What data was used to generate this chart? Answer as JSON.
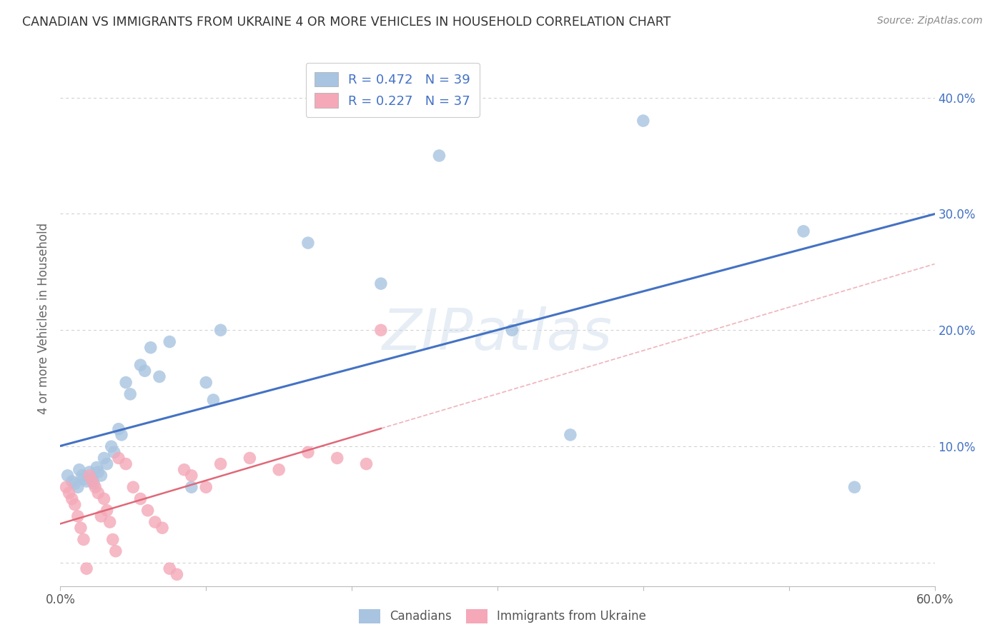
{
  "title": "CANADIAN VS IMMIGRANTS FROM UKRAINE 4 OR MORE VEHICLES IN HOUSEHOLD CORRELATION CHART",
  "source": "Source: ZipAtlas.com",
  "ylabel": "4 or more Vehicles in Household",
  "watermark": "ZIPatlas",
  "canadians_R": 0.472,
  "canadians_N": 39,
  "ukraine_R": 0.227,
  "ukraine_N": 37,
  "xlim": [
    0.0,
    0.6
  ],
  "ylim": [
    -0.02,
    0.44
  ],
  "x_ticks": [
    0.0,
    0.1,
    0.2,
    0.3,
    0.4,
    0.5,
    0.6
  ],
  "y_ticks_right": [
    0.0,
    0.1,
    0.2,
    0.3,
    0.4
  ],
  "canadians_color": "#a8c4e0",
  "ukraine_color": "#f4a8b8",
  "canadians_line_color": "#4472c4",
  "ukraine_line_color": "#e06878",
  "canadians_x": [
    0.005,
    0.008,
    0.01,
    0.012,
    0.013,
    0.015,
    0.016,
    0.018,
    0.02,
    0.022,
    0.023,
    0.025,
    0.026,
    0.028,
    0.03,
    0.032,
    0.035,
    0.037,
    0.04,
    0.042,
    0.045,
    0.048,
    0.055,
    0.058,
    0.062,
    0.068,
    0.075,
    0.09,
    0.1,
    0.105,
    0.11,
    0.17,
    0.22,
    0.26,
    0.31,
    0.35,
    0.4,
    0.51,
    0.545
  ],
  "canadians_y": [
    0.075,
    0.07,
    0.068,
    0.065,
    0.08,
    0.075,
    0.072,
    0.07,
    0.078,
    0.073,
    0.068,
    0.082,
    0.078,
    0.075,
    0.09,
    0.085,
    0.1,
    0.095,
    0.115,
    0.11,
    0.155,
    0.145,
    0.17,
    0.165,
    0.185,
    0.16,
    0.19,
    0.065,
    0.155,
    0.14,
    0.2,
    0.275,
    0.24,
    0.35,
    0.2,
    0.11,
    0.38,
    0.285,
    0.065
  ],
  "ukraine_x": [
    0.004,
    0.006,
    0.008,
    0.01,
    0.012,
    0.014,
    0.016,
    0.018,
    0.02,
    0.022,
    0.024,
    0.026,
    0.028,
    0.03,
    0.032,
    0.034,
    0.036,
    0.038,
    0.04,
    0.045,
    0.05,
    0.055,
    0.06,
    0.065,
    0.07,
    0.075,
    0.08,
    0.085,
    0.09,
    0.1,
    0.11,
    0.13,
    0.15,
    0.17,
    0.19,
    0.21,
    0.22
  ],
  "ukraine_y": [
    0.065,
    0.06,
    0.055,
    0.05,
    0.04,
    0.03,
    0.02,
    -0.005,
    0.075,
    0.07,
    0.065,
    0.06,
    0.04,
    0.055,
    0.045,
    0.035,
    0.02,
    0.01,
    0.09,
    0.085,
    0.065,
    0.055,
    0.045,
    0.035,
    0.03,
    -0.005,
    -0.01,
    0.08,
    0.075,
    0.065,
    0.085,
    0.09,
    0.08,
    0.095,
    0.09,
    0.085,
    0.2
  ],
  "legend_canadians_label": "Canadians",
  "legend_ukraine_label": "Immigrants from Ukraine",
  "background_color": "#ffffff",
  "grid_color": "#cccccc"
}
